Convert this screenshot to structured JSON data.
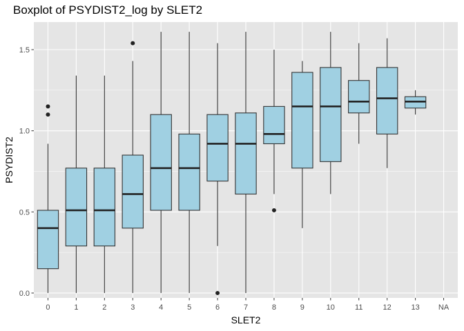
{
  "chart_data": {
    "type": "boxplot",
    "title": "Boxplot of PSYDIST2_log by SLET2",
    "xlabel": "SLET2",
    "ylabel": "PSYDIST2",
    "categories": [
      "0",
      "1",
      "2",
      "3",
      "4",
      "5",
      "6",
      "7",
      "8",
      "9",
      "10",
      "11",
      "12",
      "13",
      "NA"
    ],
    "ylim": [
      -0.03,
      1.67
    ],
    "yticks": [
      0.0,
      0.5,
      1.0,
      1.5
    ],
    "ytick_labels": [
      "0.0",
      "0.5",
      "1.0",
      "1.5"
    ],
    "grid": true,
    "box_fill": "#a0d0e2",
    "box_stroke": "#333333",
    "panel_background": "#e5e5e5",
    "grid_color": "#ffffff",
    "boxes": [
      {
        "category": "0",
        "low": 0.0,
        "q1": 0.15,
        "median": 0.4,
        "q3": 0.51,
        "high": 0.92,
        "outliers": [
          1.1,
          1.15
        ]
      },
      {
        "category": "1",
        "low": 0.0,
        "q1": 0.29,
        "median": 0.51,
        "q3": 0.77,
        "high": 1.34,
        "outliers": []
      },
      {
        "category": "2",
        "low": 0.0,
        "q1": 0.29,
        "median": 0.51,
        "q3": 0.77,
        "high": 1.34,
        "outliers": []
      },
      {
        "category": "3",
        "low": 0.0,
        "q1": 0.4,
        "median": 0.61,
        "q3": 0.85,
        "high": 1.43,
        "outliers": [
          1.54
        ]
      },
      {
        "category": "4",
        "low": 0.0,
        "q1": 0.51,
        "median": 0.77,
        "q3": 1.1,
        "high": 1.61,
        "outliers": []
      },
      {
        "category": "5",
        "low": 0.0,
        "q1": 0.51,
        "median": 0.77,
        "q3": 0.98,
        "high": 1.61,
        "outliers": []
      },
      {
        "category": "6",
        "low": 0.29,
        "q1": 0.69,
        "median": 0.92,
        "q3": 1.1,
        "high": 1.54,
        "outliers": [
          0.0
        ]
      },
      {
        "category": "7",
        "low": 0.0,
        "q1": 0.61,
        "median": 0.92,
        "q3": 1.11,
        "high": 1.61,
        "outliers": []
      },
      {
        "category": "8",
        "low": 0.61,
        "q1": 0.92,
        "median": 0.98,
        "q3": 1.15,
        "high": 1.5,
        "outliers": [
          0.51
        ]
      },
      {
        "category": "9",
        "low": 0.4,
        "q1": 0.77,
        "median": 1.15,
        "q3": 1.36,
        "high": 1.43,
        "outliers": []
      },
      {
        "category": "10",
        "low": 0.61,
        "q1": 0.81,
        "median": 1.15,
        "q3": 1.39,
        "high": 1.61,
        "outliers": []
      },
      {
        "category": "11",
        "low": 0.92,
        "q1": 1.11,
        "median": 1.18,
        "q3": 1.31,
        "high": 1.54,
        "outliers": []
      },
      {
        "category": "12",
        "low": 0.77,
        "q1": 0.98,
        "median": 1.2,
        "q3": 1.39,
        "high": 1.57,
        "outliers": []
      },
      {
        "category": "13",
        "low": 1.1,
        "q1": 1.14,
        "median": 1.18,
        "q3": 1.21,
        "high": 1.25,
        "outliers": []
      }
    ]
  }
}
